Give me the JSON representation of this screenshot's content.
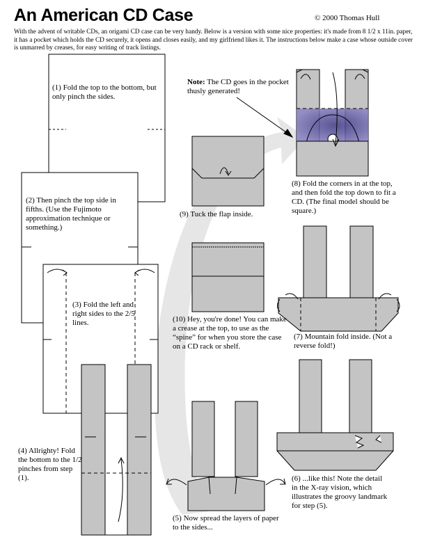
{
  "header": {
    "title": "An American CD Case",
    "copyright": "© 2000 Thomas Hull",
    "intro": "With the advent of writable CDs, an origami CD case can be very handy.  Below is a version with some nice properties: it's made from 8 1/2 x 11in. paper, it has a pocket which holds the CD securely, it opens and closes easily, and my girlfriend likes it. The instructions below make a case whose outside cover is unmarred by creases, for easy writing of track listings."
  },
  "steps": {
    "step1": "(1) Fold the top to the bottom, but only pinch the sides.",
    "step2": "(2) Then pinch the top side in fifths.  (Use the Fujimoto approximation technique or something.)",
    "step3": "(3) Fold the left and right sides to the 2/5 lines.",
    "step4": "(4) Allrighty! Fold the bottom to the 1/2 pinches from step (1).",
    "step5": "(5) Now spread the layers of paper to the sides...",
    "step6": "(6) ...like this!  Note the detail in the X-ray vision, which illustrates the groovy landmark for step (5).",
    "step7": "(7) Mountain fold inside. (Not a reverse fold!)",
    "step8": "(8) Fold the corners in at the top, and then fold the top down to fit a CD.  (The final model should be square.)",
    "step9": "(9) Tuck the flap inside.",
    "step10": "(10) Hey, you're done!  You can  make a crease at the top, to use as the “spine” for when you store the case on a CD rack or shelf.",
    "note_label": "Note:",
    "note_text": " The CD goes in the pocket thusly generated!"
  },
  "colors": {
    "paper_gray": "#c4c4c4",
    "flow_arrow": "#e6e6e6",
    "cd_purple": "#5a4f9a"
  }
}
